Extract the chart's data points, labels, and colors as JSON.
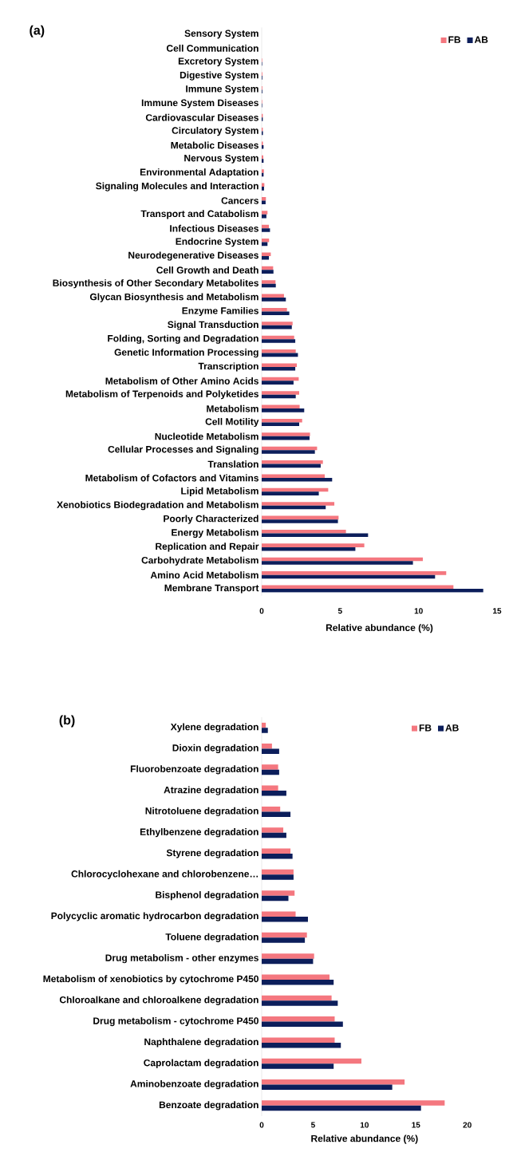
{
  "chart_data": [
    {
      "type": "bar",
      "orientation": "horizontal",
      "title": "(a)",
      "xlabel": "Relative abundance (%)",
      "categories": [
        "Sensory System",
        "Cell Communication",
        "Excretory System",
        "Digestive System",
        "Immune System",
        "Immune System Diseases",
        "Cardiovascular Diseases",
        "Circulatory System",
        "Metabolic Diseases",
        "Nervous System",
        "Environmental Adaptation",
        "Signaling Molecules and Interaction",
        "Cancers",
        "Transport and Catabolism",
        "Infectious Diseases",
        "Endocrine System",
        "Neurodegenerative Diseases",
        "Cell Growth and Death",
        "Biosynthesis of Other Secondary Metabolites",
        "Glycan Biosynthesis and Metabolism",
        "Enzyme Families",
        "Signal Transduction",
        "Folding, Sorting and Degradation",
        "Genetic Information Processing",
        "Transcription",
        "Metabolism of Other Amino Acids",
        "Metabolism of Terpenoids and Polyketides",
        "Metabolism",
        "Cell Motility",
        "Nucleotide Metabolism",
        "Cellular Processes and Signaling",
        "Translation",
        "Metabolism of Cofactors and Vitamins",
        "Lipid Metabolism",
        "Xenobiotics Biodegradation and Metabolism",
        "Poorly Characterized",
        "Energy Metabolism",
        "Replication and Repair",
        "Carbohydrate Metabolism",
        "Amino Acid Metabolism",
        "Membrane Transport"
      ],
      "series": [
        {
          "name": "FB",
          "color": "#f4777f",
          "values": [
            0,
            0,
            0.03,
            0.04,
            0.04,
            0.03,
            0.07,
            0.07,
            0.08,
            0.1,
            0.14,
            0.17,
            0.27,
            0.37,
            0.46,
            0.47,
            0.58,
            0.73,
            0.88,
            1.42,
            1.61,
            1.97,
            2.07,
            2.17,
            2.24,
            2.36,
            2.39,
            2.42,
            2.58,
            3.08,
            3.53,
            3.9,
            4.02,
            4.24,
            4.63,
            4.9,
            5.37,
            6.54,
            10.27,
            11.76,
            12.22
          ]
        },
        {
          "name": "AB",
          "color": "#0c1e5b",
          "values": [
            0,
            0,
            0.03,
            0.04,
            0.04,
            0.03,
            0.07,
            0.08,
            0.12,
            0.12,
            0.12,
            0.15,
            0.25,
            0.3,
            0.53,
            0.37,
            0.46,
            0.75,
            0.9,
            1.54,
            1.76,
            1.92,
            2.14,
            2.31,
            2.14,
            2.03,
            2.17,
            2.71,
            2.39,
            3.05,
            3.39,
            3.76,
            4.49,
            3.64,
            4.08,
            4.86,
            6.78,
            5.97,
            9.64,
            11.05,
            14.12
          ]
        }
      ],
      "xlim": [
        0,
        15
      ],
      "xticks": [
        0,
        5,
        10,
        15
      ],
      "legend": "top right",
      "grid": false
    },
    {
      "type": "bar",
      "orientation": "horizontal",
      "title": "(b)",
      "xlabel": "Relative abundance (%)",
      "categories": [
        "Xylene degradation",
        "Dioxin degradation",
        "Fluorobenzoate degradation",
        "Atrazine degradation",
        "Nitrotoluene degradation",
        "Ethylbenzene degradation",
        "Styrene degradation",
        "Chlorocyclohexane and chlorobenzene…",
        "Bisphenol degradation",
        "Polycyclic aromatic hydrocarbon degradation",
        "Toluene degradation",
        "Drug metabolism - other enzymes",
        "Metabolism of xenobiotics by cytochrome P450",
        "Chloroalkane and chloroalkene degradation",
        "Drug metabolism - cytochrome P450",
        "Naphthalene degradation",
        "Caprolactam degradation",
        "Aminobenzoate degradation",
        "Benzoate degradation"
      ],
      "series": [
        {
          "name": "FB",
          "color": "#f4777f",
          "values": [
            0.4,
            1.0,
            1.6,
            1.6,
            1.8,
            2.1,
            2.8,
            3.1,
            3.2,
            3.3,
            4.4,
            5.1,
            6.6,
            6.8,
            7.1,
            7.1,
            9.7,
            13.9,
            17.8
          ]
        },
        {
          "name": "AB",
          "color": "#0c1e5b",
          "values": [
            0.6,
            1.7,
            1.7,
            2.4,
            2.8,
            2.4,
            3.0,
            3.1,
            2.6,
            4.5,
            4.2,
            5.0,
            7.0,
            7.4,
            7.9,
            7.7,
            7.0,
            12.7,
            15.5
          ]
        }
      ],
      "xlim": [
        0,
        20
      ],
      "xticks": [
        0,
        5,
        10,
        15,
        20
      ],
      "legend": "top right",
      "grid": false
    }
  ]
}
